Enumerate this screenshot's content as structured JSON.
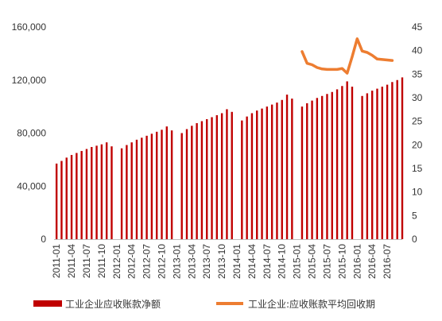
{
  "chart_data": {
    "type": "bar+line",
    "title": "",
    "grid": false,
    "legend_position": "bottom",
    "left_axis": {
      "min": 0,
      "max": 160000,
      "ticks": [
        "0",
        "40,000",
        "80,000",
        "120,000",
        "160,000"
      ]
    },
    "right_axis": {
      "min": 0,
      "max": 45,
      "ticks": [
        "0",
        "5",
        "10",
        "15",
        "20",
        "25",
        "30",
        "35",
        "40",
        "45"
      ]
    },
    "x_tick_labels": [
      "2011-01",
      "2011-04",
      "2011-07",
      "2011-10",
      "2012-01",
      "2012-04",
      "2012-07",
      "2012-10",
      "2013-01",
      "2013-04",
      "2013-07",
      "2013-10",
      "2014-01",
      "2014-04",
      "2014-07",
      "2014-10",
      "2015-01",
      "2015-04",
      "2015-07",
      "2015-10",
      "2016-01",
      "2016-04",
      "2016-07"
    ],
    "categories": [
      "2011-01",
      "2011-02",
      "2011-03",
      "2011-04",
      "2011-05",
      "2011-06",
      "2011-07",
      "2011-08",
      "2011-09",
      "2011-10",
      "2011-11",
      "2011-12",
      "2012-01",
      "2012-02",
      "2012-03",
      "2012-04",
      "2012-05",
      "2012-06",
      "2012-07",
      "2012-08",
      "2012-09",
      "2012-10",
      "2012-11",
      "2012-12",
      "2013-01",
      "2013-02",
      "2013-03",
      "2013-04",
      "2013-05",
      "2013-06",
      "2013-07",
      "2013-08",
      "2013-09",
      "2013-10",
      "2013-11",
      "2013-12",
      "2014-01",
      "2014-02",
      "2014-03",
      "2014-04",
      "2014-05",
      "2014-06",
      "2014-07",
      "2014-08",
      "2014-09",
      "2014-10",
      "2014-11",
      "2014-12",
      "2015-01",
      "2015-02",
      "2015-03",
      "2015-04",
      "2015-05",
      "2015-06",
      "2015-07",
      "2015-08",
      "2015-09",
      "2015-10",
      "2015-11",
      "2015-12",
      "2016-01",
      "2016-02",
      "2016-03",
      "2016-04",
      "2016-05",
      "2016-06",
      "2016-07",
      "2016-08",
      "2016-09",
      "2016-10"
    ],
    "series": [
      {
        "name": "工业企业应收账款净额",
        "type": "bar",
        "axis": "left",
        "color": "#c00000",
        "values": [
          57000,
          59000,
          61500,
          63500,
          65000,
          66500,
          68000,
          69500,
          70500,
          71500,
          73000,
          70000,
          null,
          68500,
          71000,
          73000,
          75000,
          76500,
          78000,
          79500,
          81000,
          82500,
          85000,
          82000,
          null,
          80000,
          83000,
          85500,
          87500,
          89000,
          90500,
          92000,
          93500,
          95000,
          98000,
          96000,
          null,
          89500,
          92500,
          95000,
          97000,
          98500,
          100000,
          101500,
          103000,
          105000,
          109000,
          106000,
          null,
          100000,
          102500,
          104500,
          106500,
          108000,
          109500,
          111000,
          113000,
          115500,
          119000,
          115000,
          null,
          108000,
          110000,
          112000,
          113500,
          115000,
          116500,
          118500,
          120000,
          122000
        ]
      },
      {
        "name": "工业企业:应收账款平均回收期",
        "type": "line",
        "axis": "right",
        "color": "#ed7d31",
        "values": [
          null,
          null,
          null,
          null,
          null,
          null,
          null,
          null,
          null,
          null,
          null,
          null,
          null,
          null,
          null,
          null,
          null,
          null,
          null,
          null,
          null,
          null,
          null,
          null,
          null,
          null,
          null,
          null,
          null,
          null,
          null,
          null,
          null,
          null,
          null,
          null,
          null,
          null,
          null,
          null,
          null,
          null,
          null,
          null,
          null,
          null,
          null,
          null,
          null,
          39.8,
          37.3,
          37.0,
          36.4,
          36.1,
          36.0,
          36.0,
          36.0,
          36.2,
          35.2,
          38.7,
          42.5,
          39.9,
          39.6,
          39.0,
          38.2,
          38.1,
          38.0,
          37.9,
          null,
          null
        ]
      }
    ]
  }
}
